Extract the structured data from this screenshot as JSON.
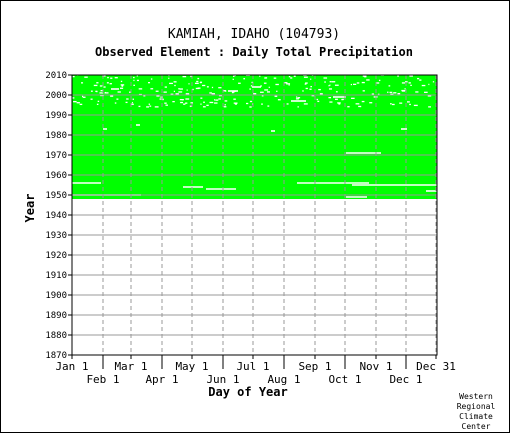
{
  "chart_data": {
    "type": "heatmap",
    "title": "KAMIAH, IDAHO   (104793)",
    "subtitle": "Observed Element : Daily Total Precipitation",
    "xlabel": "Day of Year",
    "ylabel": "Year",
    "ylim": [
      1870,
      2010
    ],
    "yticks": [
      1870,
      1880,
      1890,
      1900,
      1910,
      1920,
      1930,
      1940,
      1950,
      1960,
      1970,
      1980,
      1990,
      2000,
      2010
    ],
    "xlim": [
      1,
      366
    ],
    "month_ticks": [
      {
        "label": "Jan 1",
        "day": 1,
        "row": "top"
      },
      {
        "label": "Feb 1",
        "day": 32,
        "row": "bottom"
      },
      {
        "label": "Mar 1",
        "day": 60,
        "row": "top"
      },
      {
        "label": "Apr 1",
        "day": 91,
        "row": "bottom"
      },
      {
        "label": "May 1",
        "day": 121,
        "row": "top"
      },
      {
        "label": "Jun 1",
        "day": 152,
        "row": "bottom"
      },
      {
        "label": "Jul 1",
        "day": 182,
        "row": "top"
      },
      {
        "label": "Aug 1",
        "day": 213,
        "row": "bottom"
      },
      {
        "label": "Sep 1",
        "day": 244,
        "row": "top"
      },
      {
        "label": "Oct 1",
        "day": 274,
        "row": "bottom"
      },
      {
        "label": "Nov 1",
        "day": 305,
        "row": "top"
      },
      {
        "label": "Dec 1",
        "day": 335,
        "row": "bottom"
      },
      {
        "label": "Dec 31",
        "day": 365,
        "row": "top"
      }
    ],
    "data_color": "#00ff00",
    "grid_color": "#999999",
    "record_start_year": 1948,
    "record_end_year": 2010,
    "missing_segments": [
      {
        "year": 1956,
        "start_day": 1,
        "end_day": 30
      },
      {
        "year": 1954,
        "start_day": 112,
        "end_day": 132
      },
      {
        "year": 1953,
        "start_day": 135,
        "end_day": 165
      },
      {
        "year": 1950,
        "start_day": 1,
        "end_day": 70
      },
      {
        "year": 1949,
        "start_day": 275,
        "end_day": 296
      },
      {
        "year": 1956,
        "start_day": 226,
        "end_day": 298
      },
      {
        "year": 1955,
        "start_day": 281,
        "end_day": 366
      },
      {
        "year": 1971,
        "start_day": 275,
        "end_day": 310
      },
      {
        "year": 1997,
        "start_day": 220,
        "end_day": 235
      },
      {
        "year": 1999,
        "start_day": 262,
        "end_day": 275
      },
      {
        "year": 2004,
        "start_day": 181,
        "end_day": 190
      },
      {
        "year": 2003,
        "start_day": 40,
        "end_day": 48
      },
      {
        "year": 2002,
        "start_day": 157,
        "end_day": 167
      },
      {
        "year": 1983,
        "start_day": 32,
        "end_day": 36
      },
      {
        "year": 1982,
        "start_day": 200,
        "end_day": 204
      },
      {
        "year": 1983,
        "start_day": 330,
        "end_day": 336
      },
      {
        "year": 1985,
        "start_day": 65,
        "end_day": 69
      },
      {
        "year": 1952,
        "start_day": 355,
        "end_day": 366
      }
    ],
    "credit": [
      "Western",
      "Regional",
      "Climate",
      "Center"
    ]
  }
}
